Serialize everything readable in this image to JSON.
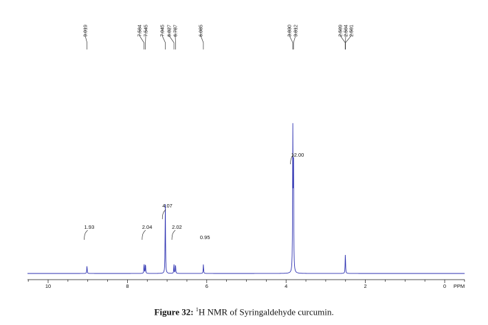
{
  "chart_data": {
    "type": "line",
    "title": "",
    "xlabel": "PPM",
    "ylabel": "",
    "xlim": [
      10.5,
      -0.5
    ],
    "x_ticks": [
      "10",
      "8",
      "6",
      "4",
      "2",
      "0"
    ],
    "x_tick_values": [
      10,
      8,
      6,
      4,
      2,
      0
    ],
    "peak_labels": [
      {
        "ppm": 9.019,
        "text": "9.019"
      },
      {
        "ppm": 7.584,
        "text": "7.584"
      },
      {
        "ppm": 7.545,
        "text": "7.545"
      },
      {
        "ppm": 7.045,
        "text": "7.045"
      },
      {
        "ppm": 6.827,
        "text": "6.827"
      },
      {
        "ppm": 6.787,
        "text": "6.787"
      },
      {
        "ppm": 6.085,
        "text": "6.085"
      },
      {
        "ppm": 3.83,
        "text": "3.830"
      },
      {
        "ppm": 3.812,
        "text": "3.812"
      },
      {
        "ppm": 2.509,
        "text": "2.509"
      },
      {
        "ppm": 2.504,
        "text": "2.504"
      },
      {
        "ppm": 2.501,
        "text": "2.501"
      }
    ],
    "peaks": [
      {
        "ppm": 9.02,
        "height": 0.055
      },
      {
        "ppm": 7.58,
        "height": 0.07
      },
      {
        "ppm": 7.545,
        "height": 0.07
      },
      {
        "ppm": 7.045,
        "height": 0.5
      },
      {
        "ppm": 6.827,
        "height": 0.065
      },
      {
        "ppm": 6.787,
        "height": 0.065
      },
      {
        "ppm": 6.085,
        "height": 0.065
      },
      {
        "ppm": 3.83,
        "height": 1.0
      },
      {
        "ppm": 3.812,
        "height": 0.75
      },
      {
        "ppm": 2.505,
        "height": 0.145
      }
    ],
    "integrals": [
      {
        "ppm": 9.02,
        "text": "1.93"
      },
      {
        "ppm": 7.56,
        "text": "2.04"
      },
      {
        "ppm": 7.05,
        "text": "4.07"
      },
      {
        "ppm": 6.81,
        "text": "2.02"
      },
      {
        "ppm": 6.085,
        "text": "0.95"
      },
      {
        "ppm": 3.82,
        "text": "12.00"
      }
    ],
    "grid": false
  },
  "caption": {
    "label": "Figure 32:",
    "superscript": "1",
    "text": "H NMR of Syringaldehyde curcumin."
  }
}
